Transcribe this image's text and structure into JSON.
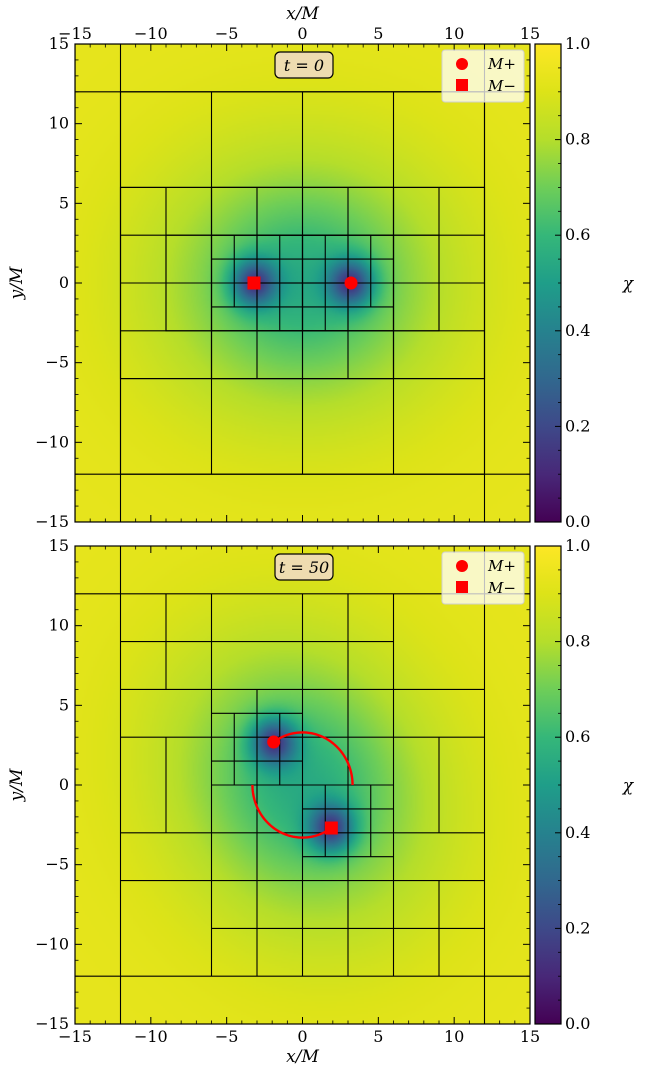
{
  "chart_data": [
    {
      "type": "heatmap",
      "panel": "top",
      "annotation": "t = 0",
      "xlabel": "x/M",
      "ylabel": "y/M",
      "xlim": [
        -15,
        15
      ],
      "ylim": [
        -15,
        15
      ],
      "xticks": [
        -15,
        -10,
        -5,
        0,
        5,
        10,
        15
      ],
      "yticks": [
        -15,
        -10,
        -5,
        0,
        5,
        10,
        15
      ],
      "xtick_labels": [
        "−15",
        "−10",
        "−5",
        "0",
        "5",
        "10",
        "15"
      ],
      "ytick_labels": [
        "−15",
        "−10",
        "−5",
        "0",
        "5",
        "10",
        "15"
      ],
      "x_axis_on_top": true,
      "colorbar": {
        "label": "χ",
        "range": [
          0.0,
          1.0
        ],
        "ticks": [
          0.0,
          0.2,
          0.4,
          0.6,
          0.8,
          1.0
        ],
        "tick_labels": [
          "0.0",
          "0.2",
          "0.4",
          "0.6",
          "0.8",
          "1.0"
        ],
        "colormap": "viridis"
      },
      "field_sources": [
        {
          "x": 3.2,
          "y": 0
        },
        {
          "x": -3.2,
          "y": 0
        }
      ],
      "markers": [
        {
          "label": "M+",
          "shape": "circle",
          "x": 3.2,
          "y": 0,
          "color": "#ff0000"
        },
        {
          "label": "M−",
          "shape": "square",
          "x": -3.2,
          "y": 0,
          "color": "#ff0000"
        }
      ],
      "legend": {
        "position": "top-right",
        "entries": [
          "M+",
          "M−"
        ]
      },
      "mesh_rects": [
        [
          -15,
          -15,
          30,
          30
        ],
        [
          -12,
          -12,
          24,
          24
        ],
        [
          -6,
          -6,
          12,
          12
        ],
        [
          -12,
          -6,
          6,
          12
        ],
        [
          6,
          -6,
          6,
          12
        ],
        [
          -6,
          -6,
          6,
          3
        ],
        [
          0,
          -6,
          6,
          3
        ],
        [
          -6,
          3,
          6,
          3
        ],
        [
          0,
          3,
          6,
          3
        ],
        [
          -9,
          -3,
          3,
          6
        ],
        [
          6,
          -3,
          3,
          6
        ],
        [
          -6,
          -3,
          6,
          6
        ],
        [
          0,
          -3,
          6,
          6
        ],
        [
          -3,
          -3,
          3,
          3
        ],
        [
          0,
          -3,
          3,
          3
        ],
        [
          -3,
          0,
          3,
          3
        ],
        [
          0,
          0,
          3,
          3
        ]
      ],
      "mesh_lines": [
        {
          "x": [
            -12,
            -12
          ],
          "y": [
            -15,
            15
          ]
        },
        {
          "x": [
            12,
            12
          ],
          "y": [
            -15,
            15
          ]
        },
        {
          "x": [
            -15,
            15
          ],
          "y": [
            12,
            12
          ]
        },
        {
          "x": [
            -15,
            15
          ],
          "y": [
            -12,
            -12
          ]
        },
        {
          "x": [
            -6,
            -6
          ],
          "y": [
            -12,
            -6
          ]
        },
        {
          "x": [
            0,
            0
          ],
          "y": [
            -12,
            -6
          ]
        },
        {
          "x": [
            6,
            6
          ],
          "y": [
            -12,
            -6
          ]
        },
        {
          "x": [
            -6,
            -6
          ],
          "y": [
            6,
            12
          ]
        },
        {
          "x": [
            0,
            0
          ],
          "y": [
            6,
            12
          ]
        },
        {
          "x": [
            6,
            6
          ],
          "y": [
            6,
            12
          ]
        },
        {
          "x": [
            -12,
            12
          ],
          "y": [
            6,
            6
          ]
        },
        {
          "x": [
            -12,
            12
          ],
          "y": [
            -6,
            -6
          ]
        },
        {
          "x": [
            -9,
            -9
          ],
          "y": [
            -3,
            6
          ]
        },
        {
          "x": [
            9,
            9
          ],
          "y": [
            -3,
            6
          ]
        },
        {
          "x": [
            -3,
            -3
          ],
          "y": [
            -6,
            6
          ]
        },
        {
          "x": [
            3,
            3
          ],
          "y": [
            -6,
            6
          ]
        },
        {
          "x": [
            -12,
            12
          ],
          "y": [
            3,
            3
          ]
        },
        {
          "x": [
            -12,
            12
          ],
          "y": [
            -3,
            -3
          ]
        },
        {
          "x": [
            -12,
            12
          ],
          "y": [
            0,
            0
          ]
        },
        {
          "x": [
            -4.5,
            -4.5
          ],
          "y": [
            -1.5,
            3
          ]
        },
        {
          "x": [
            -1.5,
            -1.5
          ],
          "y": [
            -3,
            3
          ]
        },
        {
          "x": [
            1.5,
            1.5
          ],
          "y": [
            -3,
            3
          ]
        },
        {
          "x": [
            4.5,
            4.5
          ],
          "y": [
            -1.5,
            3
          ]
        },
        {
          "x": [
            -6,
            6
          ],
          "y": [
            1.5,
            1.5
          ]
        },
        {
          "x": [
            -6,
            6
          ],
          "y": [
            -1.5,
            -1.5
          ]
        }
      ]
    },
    {
      "type": "heatmap",
      "panel": "bottom",
      "annotation": "t = 50",
      "xlabel": "x/M",
      "ylabel": "y/M",
      "xlim": [
        -15,
        15
      ],
      "ylim": [
        -15,
        15
      ],
      "xticks": [
        -15,
        -10,
        -5,
        0,
        5,
        10,
        15
      ],
      "yticks": [
        -15,
        -10,
        -5,
        0,
        5,
        10,
        15
      ],
      "xtick_labels": [
        "−15",
        "−10",
        "−5",
        "0",
        "5",
        "10",
        "15"
      ],
      "ytick_labels": [
        "−15",
        "−10",
        "−5",
        "0",
        "5",
        "10",
        "15"
      ],
      "x_axis_on_top": false,
      "colorbar": {
        "label": "χ",
        "range": [
          0.0,
          1.0
        ],
        "ticks": [
          0.0,
          0.2,
          0.4,
          0.6,
          0.8,
          1.0
        ],
        "tick_labels": [
          "0.0",
          "0.2",
          "0.4",
          "0.6",
          "0.8",
          "1.0"
        ],
        "colormap": "viridis"
      },
      "field_sources": [
        {
          "x": -1.9,
          "y": 2.7
        },
        {
          "x": 1.9,
          "y": -2.7
        }
      ],
      "markers": [
        {
          "label": "M+",
          "shape": "circle",
          "x": -1.9,
          "y": 2.7,
          "color": "#ff0000"
        },
        {
          "label": "M−",
          "shape": "square",
          "x": 1.9,
          "y": -2.7,
          "color": "#ff0000"
        }
      ],
      "trajectory": {
        "color": "#ff0000",
        "radius": 3.3,
        "arcs": [
          {
            "from_deg": 0,
            "to_deg": 125
          },
          {
            "from_deg": 180,
            "to_deg": 305
          }
        ]
      },
      "legend": {
        "position": "top-right",
        "entries": [
          "M+",
          "M−"
        ]
      },
      "mesh_lines": [
        {
          "x": [
            -12,
            -12
          ],
          "y": [
            -15,
            15
          ]
        },
        {
          "x": [
            12,
            12
          ],
          "y": [
            -15,
            15
          ]
        },
        {
          "x": [
            -15,
            15
          ],
          "y": [
            12,
            12
          ]
        },
        {
          "x": [
            -15,
            15
          ],
          "y": [
            -12,
            -12
          ]
        },
        {
          "x": [
            -12,
            12
          ],
          "y": [
            6,
            6
          ]
        },
        {
          "x": [
            -12,
            12
          ],
          "y": [
            -6,
            -6
          ]
        },
        {
          "x": [
            -9,
            -9
          ],
          "y": [
            6,
            12
          ]
        },
        {
          "x": [
            -6,
            -6
          ],
          "y": [
            -12,
            12
          ]
        },
        {
          "x": [
            0,
            0
          ],
          "y": [
            -12,
            12
          ]
        },
        {
          "x": [
            3,
            3
          ],
          "y": [
            6,
            12
          ]
        },
        {
          "x": [
            6,
            6
          ],
          "y": [
            -12,
            12
          ]
        },
        {
          "x": [
            -12,
            6
          ],
          "y": [
            9,
            9
          ]
        },
        {
          "x": [
            -3,
            -3
          ],
          "y": [
            -12,
            -6
          ]
        },
        {
          "x": [
            3,
            3
          ],
          "y": [
            -12,
            -6
          ]
        },
        {
          "x": [
            9,
            9
          ],
          "y": [
            -12,
            -6
          ]
        },
        {
          "x": [
            -6,
            12
          ],
          "y": [
            -9,
            -9
          ]
        },
        {
          "x": [
            -12,
            12
          ],
          "y": [
            3,
            3
          ]
        },
        {
          "x": [
            -12,
            12
          ],
          "y": [
            -3,
            -3
          ]
        },
        {
          "x": [
            -9,
            -9
          ],
          "y": [
            -3,
            3
          ]
        },
        {
          "x": [
            9,
            9
          ],
          "y": [
            -3,
            3
          ]
        },
        {
          "x": [
            -3,
            -3
          ],
          "y": [
            -6,
            6
          ]
        },
        {
          "x": [
            3,
            3
          ],
          "y": [
            -6,
            6
          ]
        },
        {
          "x": [
            -4.5,
            -4.5
          ],
          "y": [
            0,
            4.5
          ]
        },
        {
          "x": [
            -1.5,
            -1.5
          ],
          "y": [
            0,
            4.5
          ]
        },
        {
          "x": [
            1.5,
            1.5
          ],
          "y": [
            -4.5,
            0
          ]
        },
        {
          "x": [
            4.5,
            4.5
          ],
          "y": [
            -4.5,
            0
          ]
        },
        {
          "x": [
            -6,
            0
          ],
          "y": [
            4.5,
            4.5
          ]
        },
        {
          "x": [
            -6,
            0
          ],
          "y": [
            1.5,
            1.5
          ]
        },
        {
          "x": [
            0,
            6
          ],
          "y": [
            -1.5,
            -1.5
          ]
        },
        {
          "x": [
            0,
            6
          ],
          "y": [
            -4.5,
            -4.5
          ]
        },
        {
          "x": [
            -6,
            6
          ],
          "y": [
            0,
            0
          ]
        }
      ]
    }
  ]
}
